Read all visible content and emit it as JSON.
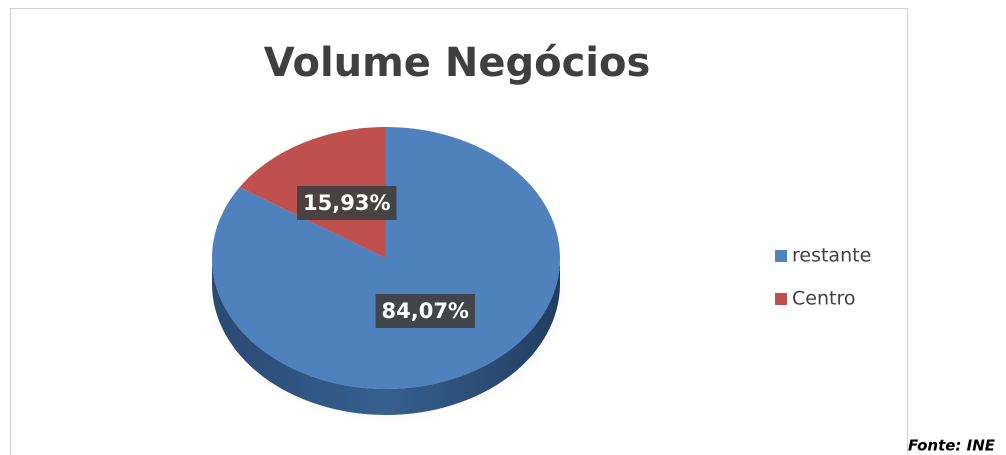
{
  "chart_data": {
    "type": "pie",
    "title": "Volume Negócios",
    "categories": [
      "restante",
      "Centro"
    ],
    "values": [
      84.07,
      15.93
    ],
    "value_labels": [
      "84,07%",
      "15,93%"
    ],
    "colors": [
      "#4f81bd",
      "#c0504d"
    ],
    "legend": "right",
    "source": "Fonte: INE"
  }
}
